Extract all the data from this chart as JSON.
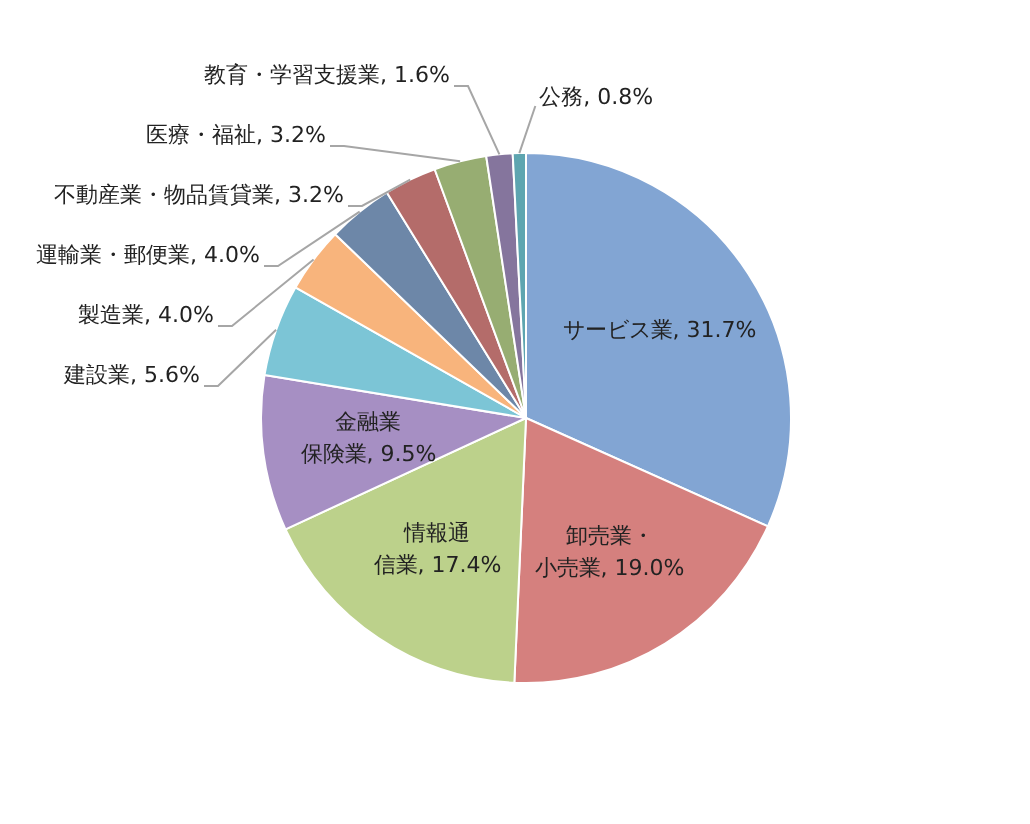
{
  "chart_data": {
    "type": "pie",
    "categories": [
      "サービス業",
      "卸売業・小売業",
      "情報通信業",
      "金融業保険業",
      "建設業",
      "製造業",
      "運輸業・郵便業",
      "不動産業・物品賃貸業",
      "医療・福祉",
      "教育・学習支援業",
      "公務"
    ],
    "values": [
      31.7,
      19.0,
      17.4,
      9.5,
      5.6,
      4.0,
      4.0,
      3.2,
      3.2,
      1.6,
      0.8
    ],
    "value_labels": [
      "31.7%",
      "19.0%",
      "17.4%",
      "9.5%",
      "5.6%",
      "4.0%",
      "4.0%",
      "3.2%",
      "3.2%",
      "1.6%",
      "0.8%"
    ],
    "colors": [
      "#82a5d3",
      "#d5807e",
      "#bcd18b",
      "#a68fc3",
      "#7cc5d6",
      "#f8b47c",
      "#6d87a8",
      "#b46c6a",
      "#97ad72",
      "#85759d",
      "#5ea5b0"
    ],
    "legend": false
  }
}
